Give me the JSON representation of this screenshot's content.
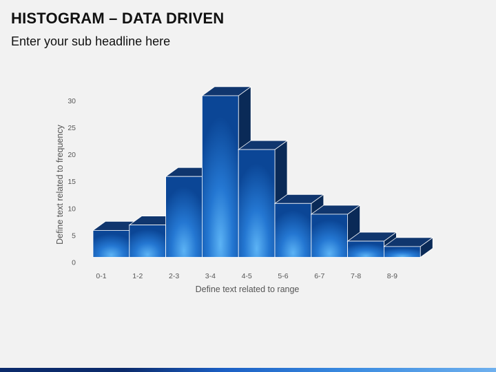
{
  "slide": {
    "title": "HISTOGRAM – DATA DRIVEN",
    "subtitle": "Enter your sub headline here"
  },
  "colors": {
    "bar_front_edge": "#0d4fa8",
    "bar_front_center": "#3b95e6",
    "bar_top": "#10366e",
    "bar_side": "#0a2a57",
    "accent_footer": "#1b5fc4"
  },
  "chart_data": {
    "type": "bar",
    "title": "",
    "categories": [
      "0-1",
      "1-2",
      "2-3",
      "3-4",
      "4-5",
      "5-6",
      "6-7",
      "7-8",
      "8-9"
    ],
    "values": [
      5,
      6,
      15,
      30,
      20,
      10,
      8,
      3,
      2
    ],
    "xlabel": "Define text related to range",
    "ylabel": "Define text related to frequency",
    "ylim": [
      0,
      30
    ],
    "yticks": [
      0,
      5,
      10,
      15,
      20,
      25,
      30
    ],
    "grid": false,
    "legend": "none",
    "style": "3d"
  }
}
